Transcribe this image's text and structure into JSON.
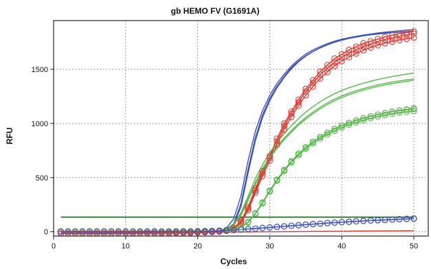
{
  "chart_data": {
    "type": "line",
    "title": "gb HEMO FV (G1691A)",
    "xlabel": "Cycles",
    "ylabel": "RFU",
    "xlim": [
      0,
      52
    ],
    "ylim": [
      -40,
      1950
    ],
    "xticks": [
      0,
      10,
      20,
      30,
      40,
      50
    ],
    "yticks": [
      0,
      500,
      1000,
      1500
    ],
    "grid": true,
    "legend": "none",
    "threshold": {
      "value": 135,
      "color": "#1f5a1f"
    },
    "cycles": [
      1,
      2,
      3,
      4,
      5,
      6,
      7,
      8,
      9,
      10,
      11,
      12,
      13,
      14,
      15,
      16,
      17,
      18,
      19,
      20,
      21,
      22,
      23,
      24,
      25,
      26,
      27,
      28,
      29,
      30,
      31,
      32,
      33,
      34,
      35,
      36,
      37,
      38,
      39,
      40,
      41,
      42,
      43,
      44,
      45,
      46,
      47,
      48,
      49,
      50
    ],
    "series": [
      {
        "color": "#3a4fc0",
        "markers": false,
        "values": [
          -10,
          -10,
          -10,
          -10,
          -10,
          -10,
          -10,
          -10,
          -10,
          -10,
          -10,
          -10,
          -10,
          -10,
          -10,
          -10,
          -10,
          -9,
          -9,
          -8,
          -6,
          -3,
          7,
          35,
          120,
          330,
          660,
          930,
          1120,
          1260,
          1370,
          1455,
          1530,
          1590,
          1640,
          1680,
          1710,
          1738,
          1760,
          1778,
          1792,
          1804,
          1814,
          1822,
          1829,
          1835,
          1840,
          1844,
          1848,
          1851
        ]
      },
      {
        "color": "#3a4fc0",
        "markers": false,
        "values": [
          -10,
          -10,
          -10,
          -10,
          -10,
          -10,
          -10,
          -10,
          -10,
          -10,
          -10,
          -10,
          -10,
          -10,
          -10,
          -10,
          -10,
          -10,
          -9,
          -8,
          -7,
          -5,
          0,
          18,
          75,
          260,
          580,
          870,
          1080,
          1230,
          1345,
          1435,
          1515,
          1575,
          1625,
          1665,
          1698,
          1726,
          1750,
          1769,
          1785,
          1798,
          1809,
          1818,
          1826,
          1833,
          1838,
          1843,
          1847,
          1851
        ]
      },
      {
        "color": "#3a4fc0",
        "markers": false,
        "values": [
          -10,
          -10,
          -10,
          -10,
          -10,
          -10,
          -10,
          -10,
          -10,
          -10,
          -10,
          -10,
          -10,
          -10,
          -10,
          -10,
          -10,
          -10,
          -9,
          -9,
          -8,
          -6,
          -1,
          14,
          62,
          230,
          545,
          840,
          1055,
          1210,
          1330,
          1425,
          1505,
          1570,
          1622,
          1664,
          1699,
          1728,
          1753,
          1773,
          1790,
          1804,
          1816,
          1826,
          1835,
          1843,
          1850,
          1856,
          1861,
          1866
        ]
      },
      {
        "color": "#e03a30",
        "markers": true,
        "values": [
          -15,
          -15,
          -15,
          -15,
          -15,
          -15,
          -15,
          -15,
          -14,
          -14,
          -14,
          -14,
          -13,
          -13,
          -12,
          -12,
          -11,
          -10,
          -9,
          -7,
          -5,
          -2,
          3,
          12,
          35,
          100,
          230,
          400,
          560,
          700,
          860,
          1000,
          1110,
          1220,
          1320,
          1400,
          1480,
          1540,
          1600,
          1640,
          1680,
          1710,
          1740,
          1760,
          1780,
          1800,
          1815,
          1830,
          1840,
          1850
        ]
      },
      {
        "color": "#e03a30",
        "markers": true,
        "values": [
          -15,
          -15,
          -15,
          -15,
          -15,
          -15,
          -15,
          -15,
          -14,
          -14,
          -14,
          -14,
          -13,
          -13,
          -12,
          -12,
          -11,
          -10,
          -9,
          -7,
          -5,
          -2,
          2,
          10,
          28,
          90,
          215,
          380,
          540,
          680,
          835,
          975,
          1090,
          1195,
          1295,
          1375,
          1450,
          1510,
          1565,
          1610,
          1648,
          1680,
          1710,
          1733,
          1755,
          1775,
          1790,
          1805,
          1818,
          1830
        ]
      },
      {
        "color": "#e03a30",
        "markers": true,
        "values": [
          -15,
          -15,
          -15,
          -15,
          -15,
          -15,
          -15,
          -15,
          -14,
          -14,
          -14,
          -14,
          -13,
          -13,
          -12,
          -12,
          -11,
          -10,
          -9,
          -7,
          -5,
          -3,
          1,
          8,
          25,
          80,
          200,
          360,
          515,
          655,
          805,
          945,
          1060,
          1165,
          1260,
          1340,
          1415,
          1475,
          1530,
          1575,
          1612,
          1645,
          1675,
          1700,
          1722,
          1740,
          1756,
          1770,
          1782,
          1793
        ]
      },
      {
        "color": "#56b94a",
        "markers": false,
        "values": [
          -5,
          -5,
          -5,
          -5,
          -5,
          -5,
          -5,
          -5,
          -5,
          -5,
          -5,
          -5,
          -5,
          -5,
          -5,
          -5,
          -4,
          -4,
          -3,
          -2,
          0,
          3,
          10,
          28,
          75,
          175,
          330,
          490,
          620,
          730,
          825,
          905,
          980,
          1045,
          1105,
          1155,
          1200,
          1240,
          1275,
          1305,
          1330,
          1352,
          1372,
          1390,
          1406,
          1420,
          1433,
          1445,
          1456,
          1466
        ]
      },
      {
        "color": "#56b94a",
        "markers": false,
        "values": [
          -5,
          -5,
          -5,
          -5,
          -5,
          -5,
          -5,
          -5,
          -5,
          -5,
          -5,
          -5,
          -5,
          -5,
          -5,
          -5,
          -4,
          -4,
          -3,
          -2,
          0,
          3,
          9,
          25,
          68,
          160,
          305,
          455,
          585,
          690,
          785,
          865,
          935,
          1000,
          1055,
          1105,
          1150,
          1190,
          1225,
          1255,
          1280,
          1302,
          1322,
          1340,
          1356,
          1370,
          1382,
          1393,
          1403,
          1412
        ]
      },
      {
        "color": "#56b94a",
        "markers": false,
        "values": [
          -5,
          -5,
          -5,
          -5,
          -5,
          -5,
          -5,
          -5,
          -5,
          -5,
          -5,
          -5,
          -5,
          -5,
          -5,
          -5,
          -4,
          -4,
          -3,
          -2,
          0,
          2,
          8,
          22,
          60,
          150,
          290,
          440,
          570,
          680,
          770,
          850,
          920,
          985,
          1040,
          1090,
          1135,
          1175,
          1210,
          1240,
          1265,
          1288,
          1308,
          1326,
          1342,
          1356,
          1368,
          1379,
          1389,
          1398
        ]
      },
      {
        "color": "#56b94a",
        "markers": true,
        "values": [
          3,
          3,
          3,
          3,
          3,
          3,
          3,
          3,
          3,
          3,
          3,
          3,
          3,
          3,
          3,
          3,
          3,
          4,
          4,
          5,
          6,
          8,
          11,
          16,
          25,
          45,
          90,
          170,
          270,
          380,
          480,
          570,
          650,
          720,
          780,
          830,
          875,
          915,
          950,
          980,
          1005,
          1028,
          1048,
          1066,
          1082,
          1096,
          1110,
          1120,
          1130,
          1140
        ]
      },
      {
        "color": "#56b94a",
        "markers": true,
        "values": [
          3,
          3,
          3,
          3,
          3,
          3,
          3,
          3,
          3,
          3,
          3,
          3,
          3,
          3,
          3,
          3,
          3,
          4,
          4,
          5,
          6,
          8,
          11,
          16,
          25,
          45,
          90,
          170,
          270,
          380,
          480,
          570,
          650,
          720,
          780,
          830,
          875,
          915,
          950,
          980,
          1005,
          1028,
          1048,
          1066,
          1082,
          1096,
          1108,
          1118,
          1126,
          1133
        ]
      },
      {
        "color": "#56b94a",
        "markers": true,
        "values": [
          3,
          3,
          3,
          3,
          3,
          3,
          3,
          3,
          3,
          3,
          3,
          3,
          3,
          3,
          3,
          3,
          3,
          4,
          4,
          5,
          6,
          8,
          11,
          16,
          24,
          43,
          85,
          165,
          262,
          370,
          470,
          560,
          640,
          708,
          766,
          816,
          860,
          898,
          932,
          962,
          988,
          1010,
          1030,
          1048,
          1064,
          1078,
          1090,
          1100,
          1108,
          1115
        ]
      },
      {
        "color": "#3a4fc0",
        "markers": true,
        "values": [
          0,
          0,
          0,
          0,
          0,
          0,
          0,
          0,
          0,
          0,
          0,
          0,
          0,
          0,
          0,
          0,
          0,
          0,
          1,
          2,
          3,
          5,
          8,
          12,
          16,
          20,
          25,
          30,
          35,
          40,
          45,
          50,
          55,
          60,
          65,
          70,
          75,
          80,
          84,
          88,
          92,
          96,
          100,
          103,
          106,
          109,
          112,
          115,
          118,
          120
        ]
      },
      {
        "color": "#3a4fc0",
        "markers": true,
        "values": [
          0,
          0,
          0,
          0,
          0,
          0,
          0,
          0,
          0,
          0,
          0,
          0,
          0,
          0,
          0,
          0,
          0,
          0,
          1,
          2,
          3,
          5,
          8,
          12,
          16,
          20,
          25,
          30,
          35,
          40,
          45,
          50,
          55,
          60,
          65,
          70,
          75,
          80,
          84,
          88,
          92,
          96,
          100,
          104,
          107,
          110,
          113,
          116,
          119,
          122
        ]
      },
      {
        "color": "#e03a30",
        "markers": false,
        "values": [
          -10,
          -10,
          -10,
          -10,
          -10,
          -10,
          -10,
          -10,
          -9,
          -9,
          -9,
          -9,
          -8,
          -8,
          -8,
          -7,
          -7,
          -6,
          -6,
          -5,
          -5,
          -4,
          -4,
          -3,
          -3,
          -2,
          -2,
          -1,
          -1,
          0,
          0,
          1,
          1,
          2,
          2,
          3,
          3,
          4,
          4,
          5,
          5,
          6,
          6,
          7,
          7,
          8,
          8,
          9,
          9,
          10
        ]
      }
    ]
  }
}
